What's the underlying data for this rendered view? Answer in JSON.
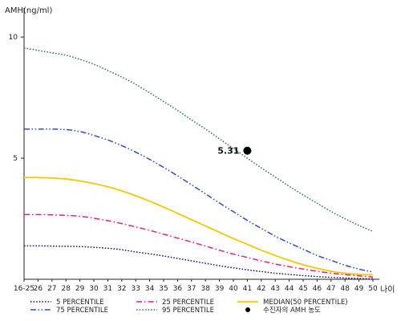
{
  "chart_data": {
    "type": "line",
    "xlabel": "나이",
    "ylabel": "AMH(ng/ml)",
    "x_tick_labels": [
      "16-25",
      "26",
      "27",
      "28",
      "29",
      "30",
      "31",
      "32",
      "33",
      "34",
      "35",
      "36",
      "37",
      "38",
      "39",
      "40",
      "41",
      "42",
      "43",
      "44",
      "45",
      "46",
      "47",
      "48",
      "49",
      "50"
    ],
    "x": [
      25,
      26,
      27,
      28,
      29,
      30,
      31,
      32,
      33,
      34,
      35,
      36,
      37,
      38,
      39,
      40,
      41,
      42,
      43,
      44,
      45,
      46,
      47,
      48,
      49,
      50
    ],
    "yticks": [
      5,
      10
    ],
    "ylim": [
      0,
      11
    ],
    "grid": false,
    "series": [
      {
        "name": "5 PERCENTILE",
        "color": "#1a1a6e",
        "dash": "dotted",
        "values": [
          1.38,
          1.38,
          1.37,
          1.36,
          1.35,
          1.32,
          1.28,
          1.22,
          1.13,
          1.05,
          0.96,
          0.86,
          0.76,
          0.66,
          0.56,
          0.47,
          0.39,
          0.32,
          0.25,
          0.2,
          0.15,
          0.11,
          0.08,
          0.05,
          0.03,
          0.02
        ]
      },
      {
        "name": "25 PERCENTILE",
        "color": "#e0208a",
        "dash": "dashdot",
        "values": [
          2.67,
          2.67,
          2.66,
          2.64,
          2.6,
          2.52,
          2.42,
          2.3,
          2.16,
          2.02,
          1.86,
          1.7,
          1.54,
          1.37,
          1.2,
          1.04,
          0.9,
          0.76,
          0.63,
          0.52,
          0.42,
          0.33,
          0.25,
          0.19,
          0.14,
          0.09
        ]
      },
      {
        "name": "MEDIAN(50 PERCENTILE)",
        "color": "#f5c800",
        "dash": "solid",
        "values": [
          4.2,
          4.2,
          4.18,
          4.14,
          4.06,
          3.95,
          3.82,
          3.65,
          3.45,
          3.22,
          2.98,
          2.72,
          2.46,
          2.2,
          1.94,
          1.68,
          1.44,
          1.2,
          0.98,
          0.78,
          0.6,
          0.45,
          0.33,
          0.25,
          0.2,
          0.18
        ]
      },
      {
        "name": "75 PERCENTILE",
        "color": "#2e4fc4",
        "dash": "dashdotdot",
        "values": [
          6.2,
          6.2,
          6.2,
          6.18,
          6.1,
          5.94,
          5.75,
          5.52,
          5.25,
          4.95,
          4.62,
          4.27,
          3.9,
          3.53,
          3.15,
          2.79,
          2.43,
          2.1,
          1.78,
          1.5,
          1.24,
          0.98,
          0.78,
          0.58,
          0.42,
          0.3
        ]
      },
      {
        "name": "95 PERCENTILE",
        "color": "#2f7f4f",
        "dash": "dotted",
        "values": [
          9.55,
          9.45,
          9.35,
          9.25,
          9.08,
          8.88,
          8.62,
          8.35,
          8.05,
          7.7,
          7.34,
          6.97,
          6.58,
          6.2,
          5.8,
          5.4,
          5.0,
          4.6,
          4.22,
          3.84,
          3.48,
          3.14,
          2.8,
          2.5,
          2.22,
          1.98
        ]
      }
    ],
    "points": [
      {
        "name": "수진자의 AMH 농도",
        "x": 41,
        "y": 5.31,
        "label": "5.31",
        "color": "#000000"
      }
    ]
  }
}
